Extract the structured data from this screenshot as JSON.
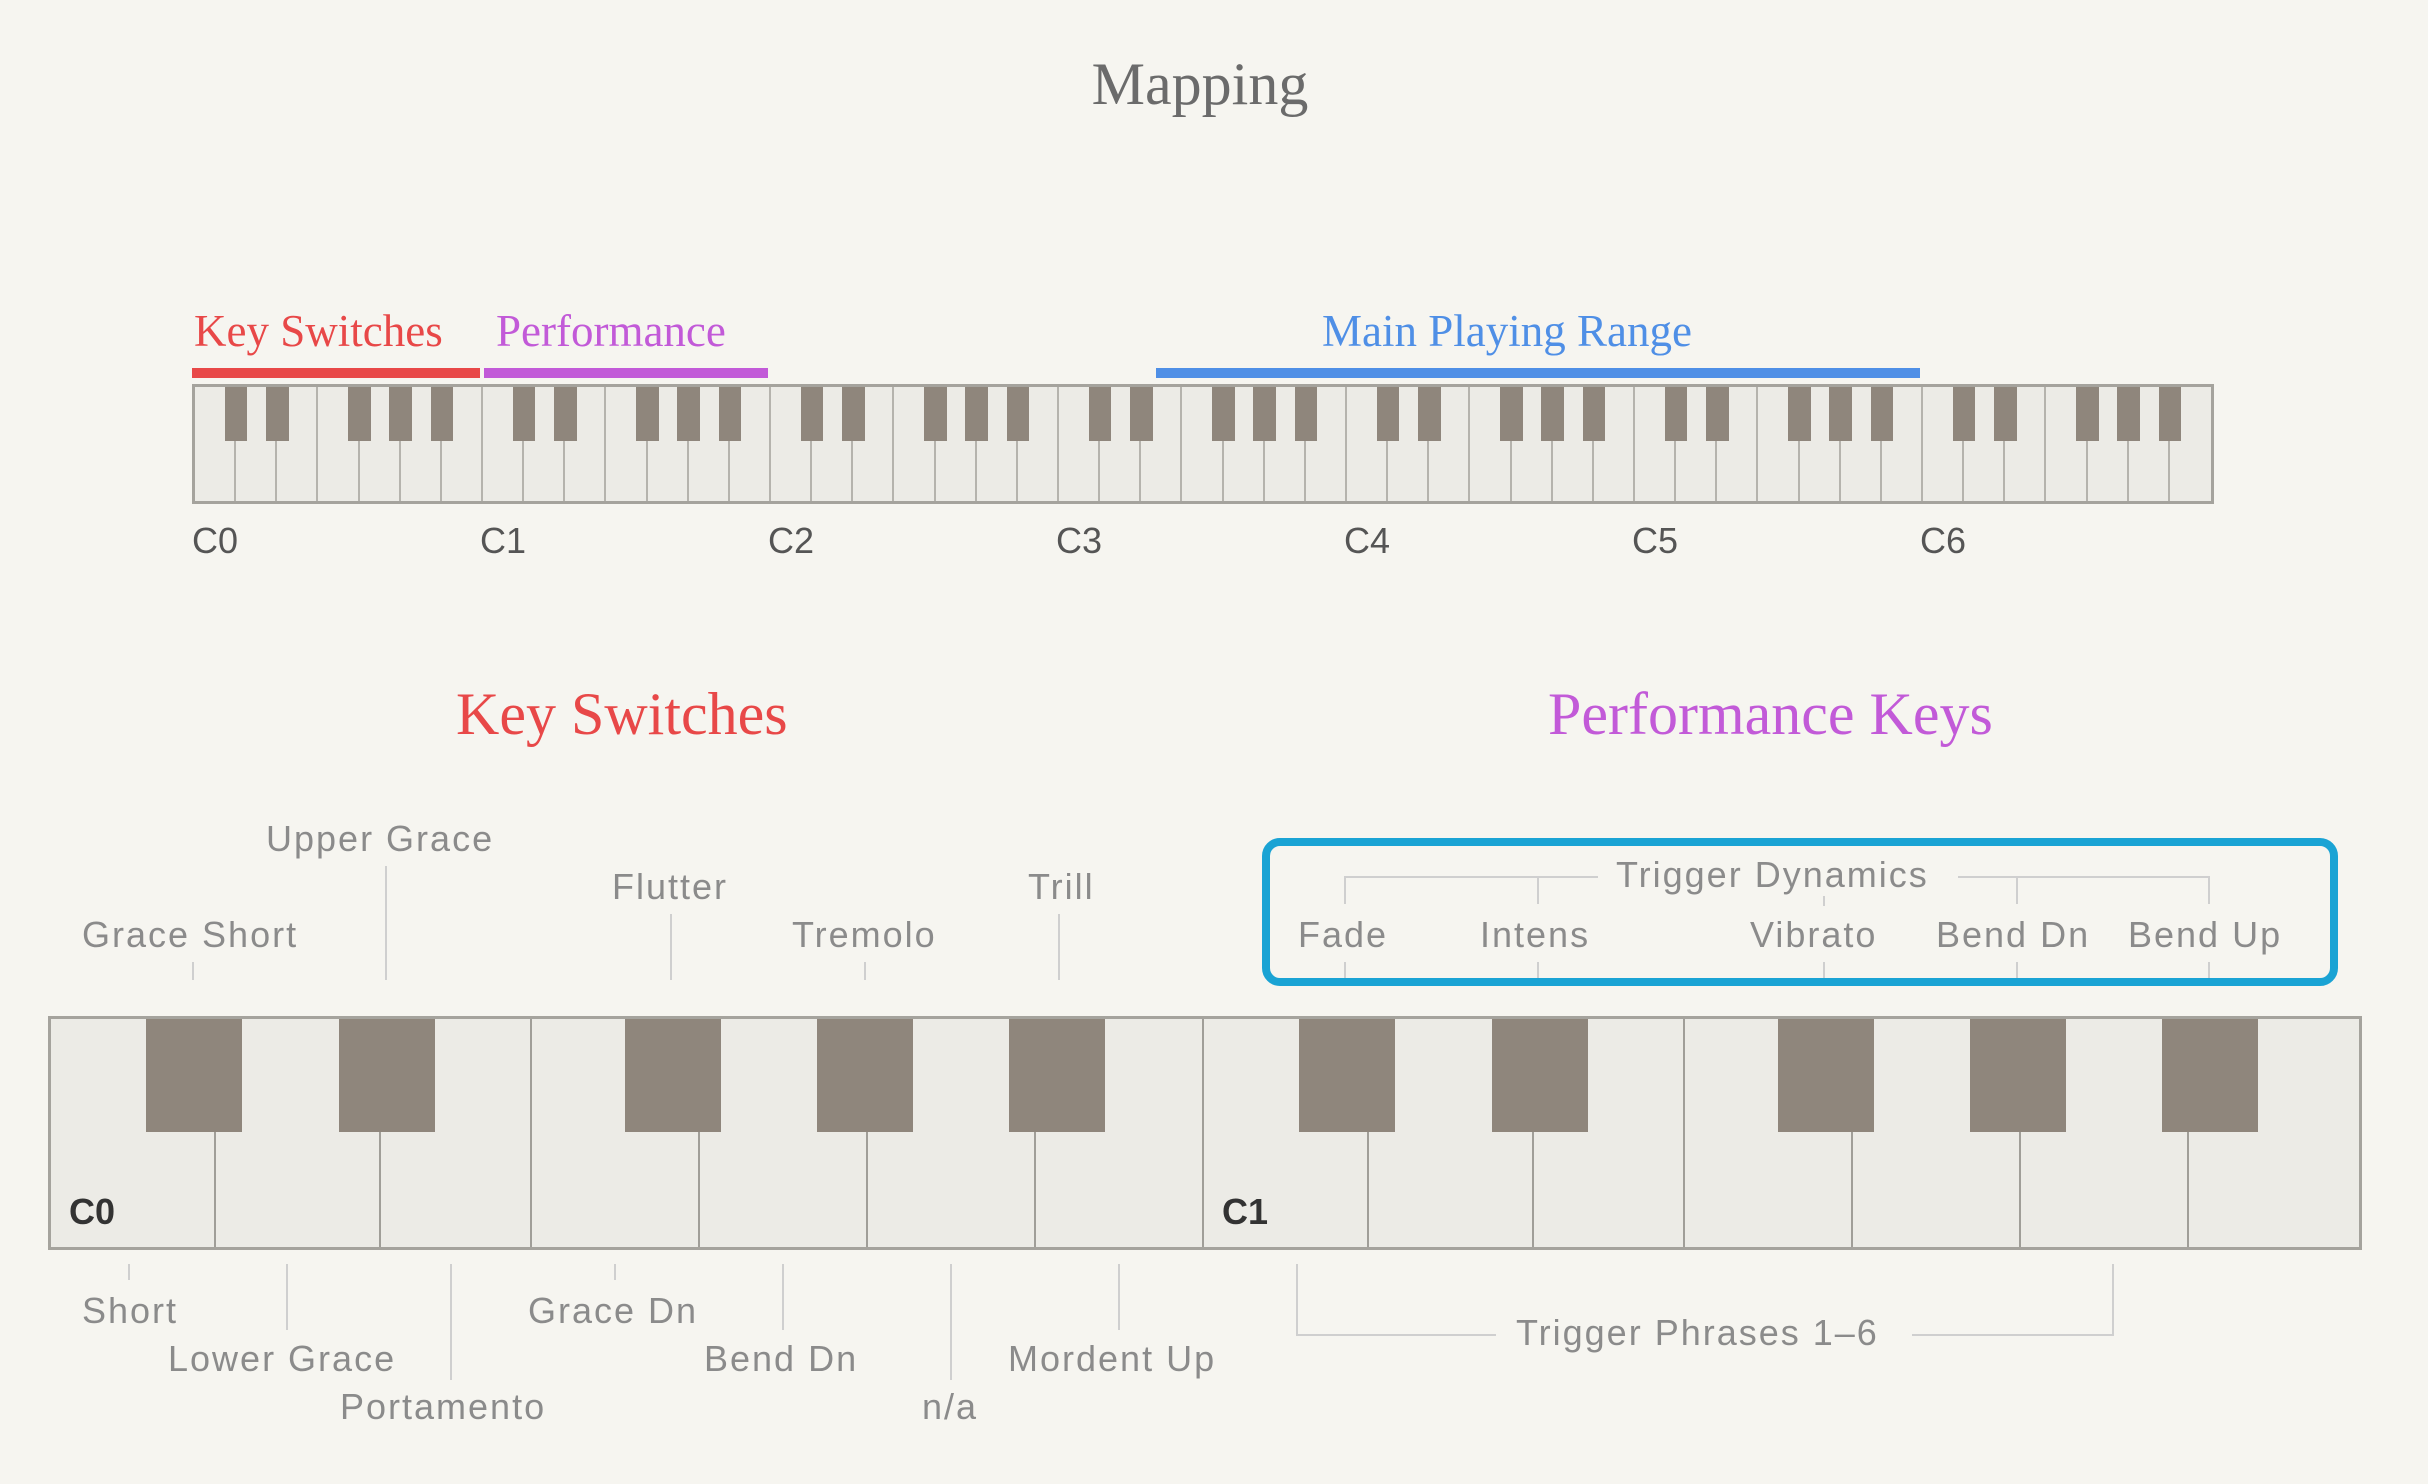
{
  "title": "Mapping",
  "keyboard_small": {
    "ranges": [
      {
        "label": "Key Switches",
        "color": "#e84848"
      },
      {
        "label": "Performance",
        "color": "#c25ad8"
      },
      {
        "label": "Main Playing Range",
        "color": "#4f8fe6"
      }
    ],
    "octave_labels": [
      "C0",
      "C1",
      "C2",
      "C3",
      "C4",
      "C5",
      "C6"
    ]
  },
  "sections": {
    "key_switches_title": "Key Switches",
    "performance_keys_title": "Performance Keys"
  },
  "big_keyboard": {
    "c0_label": "C0",
    "c1_label": "C1",
    "top_labels": {
      "grace_short": "Grace Short",
      "upper_grace": "Upper Grace",
      "flutter": "Flutter",
      "tremolo": "Tremolo",
      "trill": "Trill"
    },
    "trigger_dynamics": {
      "title": "Trigger Dynamics",
      "fade": "Fade",
      "intens": "Intens",
      "vibrato": "Vibrato",
      "bend_dn": "Bend Dn",
      "bend_up": "Bend Up"
    },
    "bottom_labels": {
      "short": "Short",
      "lower_grace": "Lower Grace",
      "portamento": "Portamento",
      "grace_dn": "Grace Dn",
      "bend_dn": "Bend Dn",
      "na": "n/a",
      "mordent_up": "Mordent Up",
      "trigger_phrases": "Trigger Phrases 1–6"
    }
  },
  "colors": {
    "key_switches": "#e84848",
    "performance": "#c25ad8",
    "main_range": "#4f8fe6",
    "highlight_box": "#1aa3d4"
  }
}
